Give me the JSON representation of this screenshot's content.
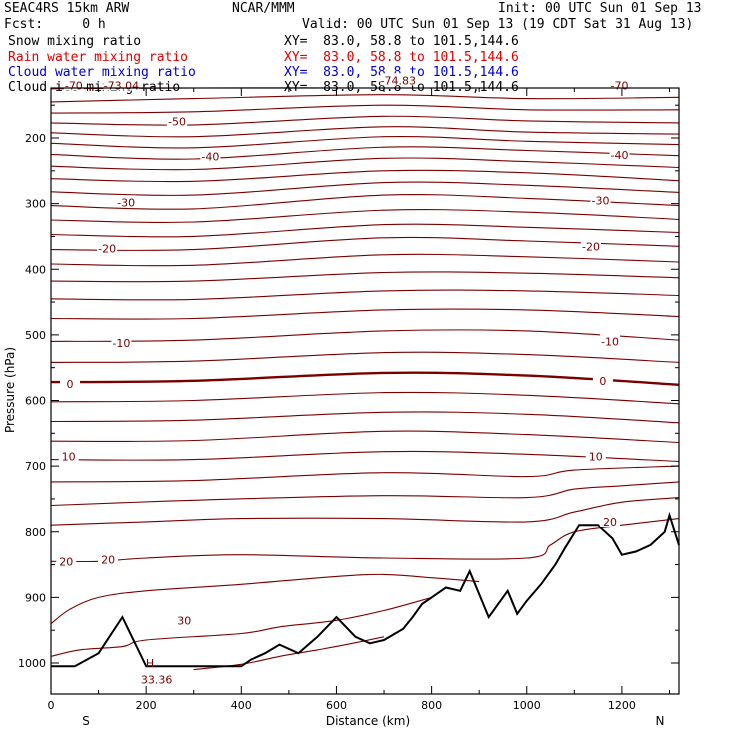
{
  "header": {
    "model": "SEAC4RS 15km ARW",
    "org": "NCAR/MMM",
    "init": "Init: 00 UTC Sun 01 Sep 13",
    "fcst": "Fcst:     0 h",
    "valid": "Valid: 00 UTC Sun 01 Sep 13 (19 CDT Sat 31 Aug 13)",
    "fields": [
      {
        "label": "Snow mixing ratio",
        "xy": "XY=  83.0, 58.8 to 101.5,144.6",
        "color": "#000000"
      },
      {
        "label": "Rain water mixing ratio",
        "xy": "XY=  83.0, 58.8 to 101.5,144.6",
        "color": "#e00000"
      },
      {
        "label": "Cloud water mixing ratio",
        "xy": "XY=  83.0, 58.8 to 101.5,144.6",
        "color": "#0000d0"
      },
      {
        "label": "Cloud ice mixing ratio",
        "xy": "XY=  83.0, 58.8 to 101.5,144.6",
        "color": "#000000"
      }
    ]
  },
  "chart_data": {
    "type": "line",
    "xlabel": "Distance (km)",
    "ylabel": "Pressure (hPa)",
    "xlim": [
      0,
      1320
    ],
    "ylim": [
      1050,
      100
    ],
    "xticks": [
      0,
      200,
      400,
      600,
      800,
      1000,
      1200
    ],
    "yticks": [
      200,
      300,
      400,
      500,
      600,
      700,
      800,
      900,
      1000
    ],
    "start_label": "S",
    "end_label": "N",
    "contour_color": "#7a0000",
    "isotherms": [
      {
        "points": [
          [
            0,
            125
          ],
          [
            300,
            122
          ],
          [
            700,
            120
          ],
          [
            1000,
            122
          ],
          [
            1320,
            118
          ]
        ]
      },
      {
        "points": [
          [
            0,
            145
          ],
          [
            300,
            140
          ],
          [
            700,
            134
          ],
          [
            1000,
            140
          ],
          [
            1320,
            138
          ]
        ]
      },
      {
        "points": [
          [
            0,
            162
          ],
          [
            300,
            160
          ],
          [
            700,
            150
          ],
          [
            1000,
            157
          ],
          [
            1320,
            157
          ]
        ]
      },
      {
        "points": [
          [
            0,
            177
          ],
          [
            300,
            180
          ],
          [
            700,
            167
          ],
          [
            1000,
            174
          ],
          [
            1320,
            177
          ]
        ]
      },
      {
        "points": [
          [
            0,
            192
          ],
          [
            300,
            198
          ],
          [
            700,
            183
          ],
          [
            1000,
            191
          ],
          [
            1320,
            194
          ]
        ]
      },
      {
        "points": [
          [
            0,
            208
          ],
          [
            300,
            215
          ],
          [
            700,
            198
          ],
          [
            1000,
            205
          ],
          [
            1320,
            210
          ]
        ]
      },
      {
        "points": [
          [
            0,
            225
          ],
          [
            300,
            232
          ],
          [
            700,
            214
          ],
          [
            1000,
            219
          ],
          [
            1320,
            227
          ]
        ]
      },
      {
        "points": [
          [
            0,
            243
          ],
          [
            300,
            248
          ],
          [
            700,
            231
          ],
          [
            1000,
            236
          ],
          [
            1320,
            245
          ]
        ]
      },
      {
        "points": [
          [
            0,
            262
          ],
          [
            300,
            266
          ],
          [
            700,
            250
          ],
          [
            1000,
            253
          ],
          [
            1320,
            265
          ]
        ]
      },
      {
        "points": [
          [
            0,
            282
          ],
          [
            300,
            287
          ],
          [
            700,
            268
          ],
          [
            1000,
            272
          ],
          [
            1320,
            283
          ]
        ]
      },
      {
        "points": [
          [
            0,
            303
          ],
          [
            300,
            308
          ],
          [
            700,
            287
          ],
          [
            1000,
            292
          ],
          [
            1320,
            303
          ]
        ]
      },
      {
        "points": [
          [
            0,
            325
          ],
          [
            300,
            328
          ],
          [
            700,
            310
          ],
          [
            1000,
            313
          ],
          [
            1320,
            324
          ]
        ]
      },
      {
        "points": [
          [
            0,
            347
          ],
          [
            300,
            350
          ],
          [
            700,
            332
          ],
          [
            1000,
            336
          ],
          [
            1320,
            344
          ]
        ]
      },
      {
        "points": [
          [
            0,
            370
          ],
          [
            300,
            370
          ],
          [
            700,
            352
          ],
          [
            1000,
            357
          ],
          [
            1320,
            365
          ]
        ]
      },
      {
        "points": [
          [
            0,
            392
          ],
          [
            300,
            394
          ],
          [
            700,
            378
          ],
          [
            1000,
            381
          ],
          [
            1320,
            389
          ]
        ]
      },
      {
        "points": [
          [
            0,
            418
          ],
          [
            300,
            418
          ],
          [
            700,
            405
          ],
          [
            1000,
            406
          ],
          [
            1320,
            413
          ]
        ]
      },
      {
        "points": [
          [
            0,
            445
          ],
          [
            300,
            446
          ],
          [
            700,
            433
          ],
          [
            1000,
            433
          ],
          [
            1320,
            440
          ]
        ]
      },
      {
        "points": [
          [
            0,
            475
          ],
          [
            300,
            475
          ],
          [
            700,
            462
          ],
          [
            1000,
            462
          ],
          [
            1320,
            472
          ]
        ]
      },
      {
        "points": [
          [
            0,
            510
          ],
          [
            300,
            508
          ],
          [
            700,
            494
          ],
          [
            1000,
            494
          ],
          [
            1320,
            508
          ]
        ]
      },
      {
        "points": [
          [
            0,
            542
          ],
          [
            300,
            540
          ],
          [
            700,
            527
          ],
          [
            1000,
            530
          ],
          [
            1320,
            542
          ]
        ]
      },
      {
        "points": [
          [
            0,
            572
          ],
          [
            300,
            570
          ],
          [
            700,
            558
          ],
          [
            1000,
            562
          ],
          [
            1320,
            576
          ]
        ],
        "bold": true
      },
      {
        "points": [
          [
            0,
            602
          ],
          [
            300,
            600
          ],
          [
            700,
            588
          ],
          [
            1000,
            592
          ],
          [
            1320,
            605
          ]
        ]
      },
      {
        "points": [
          [
            0,
            632
          ],
          [
            300,
            630
          ],
          [
            700,
            618
          ],
          [
            1000,
            621
          ],
          [
            1320,
            634
          ]
        ]
      },
      {
        "points": [
          [
            0,
            662
          ],
          [
            300,
            661
          ],
          [
            700,
            647
          ],
          [
            1000,
            652
          ],
          [
            1320,
            664
          ]
        ]
      },
      {
        "points": [
          [
            0,
            690
          ],
          [
            300,
            690
          ],
          [
            700,
            678
          ],
          [
            1000,
            682
          ],
          [
            1320,
            693
          ]
        ]
      },
      {
        "points": [
          [
            0,
            724
          ],
          [
            300,
            722
          ],
          [
            700,
            710
          ],
          [
            1000,
            716
          ],
          [
            1100,
            706
          ],
          [
            1320,
            700
          ]
        ]
      },
      {
        "points": [
          [
            0,
            760
          ],
          [
            300,
            752
          ],
          [
            700,
            745
          ],
          [
            1000,
            748
          ],
          [
            1100,
            735
          ],
          [
            1200,
            730
          ],
          [
            1320,
            724
          ]
        ]
      },
      {
        "points": [
          [
            0,
            790
          ],
          [
            200,
            785
          ],
          [
            400,
            780
          ],
          [
            700,
            780
          ],
          [
            1000,
            785
          ],
          [
            1100,
            770
          ],
          [
            1200,
            755
          ],
          [
            1320,
            748
          ]
        ]
      },
      {
        "points": [
          [
            0,
            845
          ],
          [
            100,
            845
          ],
          [
            200,
            840
          ],
          [
            400,
            835
          ],
          [
            700,
            840
          ],
          [
            1000,
            840
          ],
          [
            1050,
            820
          ],
          [
            1100,
            800
          ],
          [
            1200,
            790
          ],
          [
            1320,
            780
          ]
        ]
      },
      {
        "points": [
          [
            0,
            940
          ],
          [
            40,
            918
          ],
          [
            100,
            900
          ],
          [
            200,
            890
          ],
          [
            400,
            880
          ],
          [
            600,
            868
          ],
          [
            700,
            865
          ],
          [
            800,
            870
          ],
          [
            900,
            876
          ]
        ]
      },
      {
        "points": [
          [
            0,
            990
          ],
          [
            60,
            980
          ],
          [
            150,
            975
          ],
          [
            200,
            965
          ],
          [
            400,
            955
          ],
          [
            480,
            945
          ],
          [
            600,
            935
          ],
          [
            700,
            920
          ],
          [
            800,
            900
          ]
        ]
      },
      {
        "points": [
          [
            300,
            1010
          ],
          [
            400,
            1002
          ],
          [
            480,
            990
          ],
          [
            560,
            980
          ],
          [
            620,
            972
          ],
          [
            700,
            960
          ]
        ]
      }
    ],
    "contour_labels": [
      {
        "x": 48,
        "p": 120,
        "text": "-70"
      },
      {
        "x": 1195,
        "p": 120,
        "text": "-70"
      },
      {
        "x": 265,
        "p": 175,
        "text": "-50"
      },
      {
        "x": 335,
        "p": 228,
        "text": "-40"
      },
      {
        "x": 1195,
        "p": 226,
        "text": "-40"
      },
      {
        "x": 158,
        "p": 298,
        "text": "-30"
      },
      {
        "x": 1155,
        "p": 295,
        "text": "-30"
      },
      {
        "x": 118,
        "p": 368,
        "text": "-20"
      },
      {
        "x": 1135,
        "p": 365,
        "text": "-20"
      },
      {
        "x": 148,
        "p": 512,
        "text": "-10"
      },
      {
        "x": 1175,
        "p": 510,
        "text": "-10"
      },
      {
        "x": 40,
        "p": 575,
        "text": "0"
      },
      {
        "x": 1160,
        "p": 570,
        "text": "0"
      },
      {
        "x": 37,
        "p": 685,
        "text": "10"
      },
      {
        "x": 1145,
        "p": 685,
        "text": "10"
      },
      {
        "x": 32,
        "p": 845,
        "text": "20"
      },
      {
        "x": 120,
        "p": 842,
        "text": "20"
      },
      {
        "x": 1175,
        "p": 785,
        "text": "20"
      },
      {
        "x": 280,
        "p": 935,
        "text": "30"
      }
    ],
    "extrema": [
      {
        "x": 148,
        "p": 120,
        "text": "-73.04"
      },
      {
        "x": 730,
        "p": 112,
        "text": "-74.83"
      },
      {
        "x": 222,
        "p": 1025,
        "text": "33.36"
      }
    ],
    "high_marker": {
      "x": 208,
      "p": 1006,
      "text": "H"
    },
    "terrain": [
      [
        0,
        1005
      ],
      [
        50,
        1005
      ],
      [
        100,
        985
      ],
      [
        150,
        930
      ],
      [
        200,
        1005
      ],
      [
        250,
        1005
      ],
      [
        300,
        1005
      ],
      [
        350,
        1005
      ],
      [
        400,
        1005
      ],
      [
        420,
        995
      ],
      [
        450,
        985
      ],
      [
        480,
        972
      ],
      [
        520,
        985
      ],
      [
        560,
        960
      ],
      [
        600,
        930
      ],
      [
        640,
        960
      ],
      [
        670,
        970
      ],
      [
        700,
        965
      ],
      [
        740,
        948
      ],
      [
        760,
        930
      ],
      [
        780,
        910
      ],
      [
        800,
        900
      ],
      [
        830,
        885
      ],
      [
        860,
        890
      ],
      [
        880,
        860
      ],
      [
        900,
        895
      ],
      [
        920,
        930
      ],
      [
        940,
        910
      ],
      [
        960,
        890
      ],
      [
        980,
        925
      ],
      [
        1000,
        905
      ],
      [
        1030,
        880
      ],
      [
        1060,
        850
      ],
      [
        1080,
        825
      ],
      [
        1110,
        790
      ],
      [
        1150,
        790
      ],
      [
        1180,
        810
      ],
      [
        1200,
        835
      ],
      [
        1230,
        830
      ],
      [
        1260,
        820
      ],
      [
        1290,
        800
      ],
      [
        1300,
        775
      ],
      [
        1320,
        820
      ]
    ]
  }
}
